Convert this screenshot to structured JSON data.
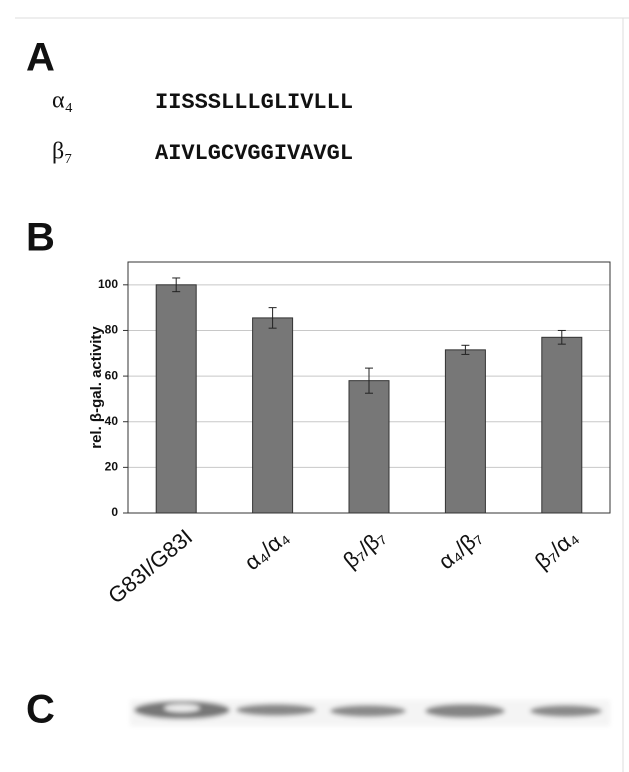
{
  "panel_a": {
    "label": "A",
    "rows": [
      {
        "name": "α₄",
        "sequence": "IISSSLLLGLIVLLL"
      },
      {
        "name": "β₇",
        "sequence": "AIVLGCVGGIVAVGL"
      }
    ]
  },
  "chart_data": {
    "type": "bar",
    "panel_label": "B",
    "y_label": "rel. β-gal. activity",
    "categories": [
      "G83I/G83I",
      "α₄/α₄",
      "β₇/β₇",
      "α₄/β₇",
      "β₇/α₄"
    ],
    "values": [
      100,
      85.5,
      58,
      71.5,
      77
    ],
    "errors": [
      3,
      4.5,
      5.5,
      2,
      3
    ],
    "color": "#777777",
    "ylim": [
      0,
      110
    ],
    "yticks": [
      0,
      20,
      40,
      60,
      80,
      100
    ],
    "grid": true
  },
  "panel_c": {
    "label": "C"
  }
}
